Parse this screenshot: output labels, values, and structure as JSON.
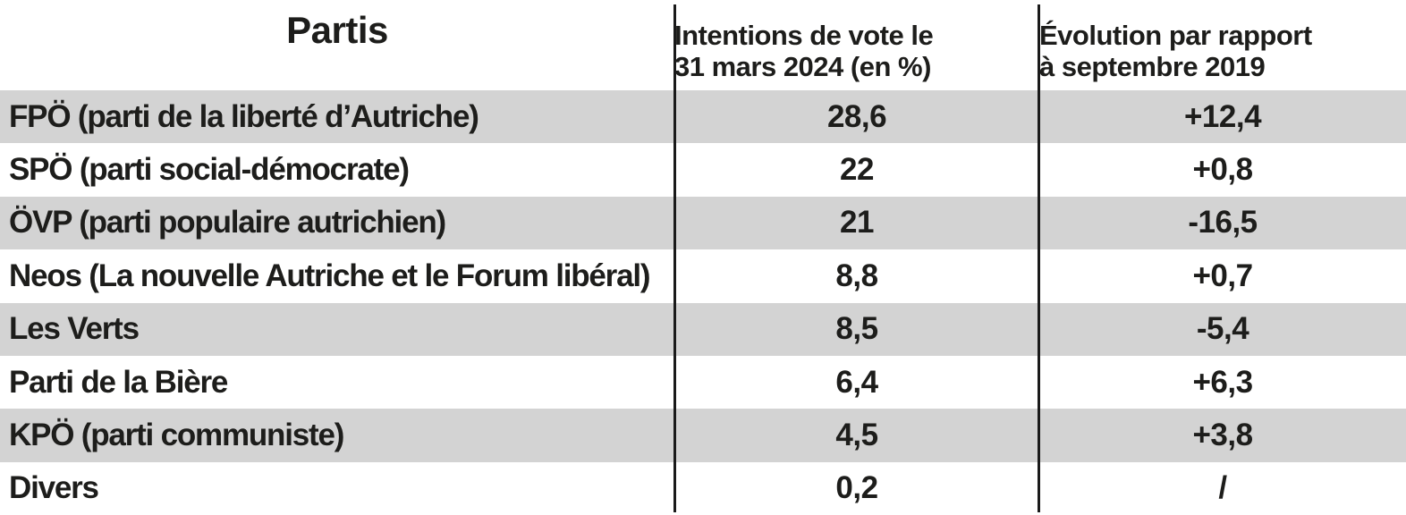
{
  "chart_data": {
    "type": "table",
    "columns": [
      "Partis",
      "Intentions de vote le 31 mars 2024 (en %)",
      "Évolution par rapport à septembre 2019"
    ],
    "rows": [
      {
        "party": "FPÖ (parti de la liberté d’Autriche)",
        "vote": "28,6",
        "evolution": "+12,4"
      },
      {
        "party": "SPÖ (parti social-démocrate)",
        "vote": "22",
        "evolution": "+0,8"
      },
      {
        "party": "ÖVP (parti populaire autrichien)",
        "vote": "21",
        "evolution": "-16,5"
      },
      {
        "party": "Neos (La nouvelle Autriche et le Forum libéral)",
        "vote": "8,8",
        "evolution": "+0,7"
      },
      {
        "party": "Les Verts",
        "vote": "8,5",
        "evolution": "-5,4"
      },
      {
        "party": "Parti de la Bière",
        "vote": "6,4",
        "evolution": "+6,3"
      },
      {
        "party": "KPÖ (parti communiste)",
        "vote": "4,5",
        "evolution": "+3,8"
      },
      {
        "party": "Divers",
        "vote": "0,2",
        "evolution": "/"
      }
    ]
  },
  "header": {
    "partis": "Partis",
    "intentions_line1": "Intentions de vote le",
    "intentions_line2": "31 mars 2024 (en %)",
    "evolution_line1": "Évolution par rapport",
    "evolution_line2": "à septembre 2019"
  },
  "colors": {
    "text": "#1d1d1b",
    "row_alt": "#d3d3d3",
    "background": "#ffffff",
    "divider": "#1a1a1a"
  }
}
